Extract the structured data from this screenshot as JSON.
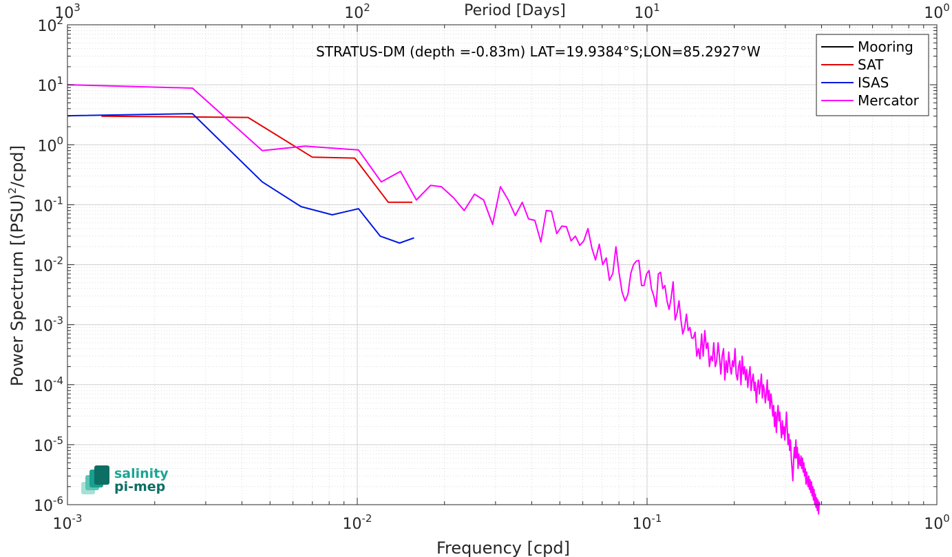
{
  "chart_data": {
    "type": "line",
    "title": "STRATUS-DM (depth =-0.83m) LAT=19.9384°S;LON=85.2927°W",
    "xlabel": "Frequency [cpd]",
    "ylabel": "Power Spectrum [(PSU)",
    "ylabel_sup": "2",
    "ylabel_tail": "/cpd]",
    "top_xlabel": "Period [Days]",
    "x_scale": "log",
    "y_scale": "log",
    "xlim": [
      0.001,
      1
    ],
    "ylim": [
      1e-06,
      100
    ],
    "grid": true,
    "minor_grid": true,
    "legend_position": "top-right",
    "x_ticks": [
      {
        "v": 0.001,
        "base": "10",
        "exp": "-3"
      },
      {
        "v": 0.01,
        "base": "10",
        "exp": "-2"
      },
      {
        "v": 0.1,
        "base": "10",
        "exp": "-1"
      },
      {
        "v": 1,
        "base": "10",
        "exp": "0"
      }
    ],
    "top_ticks": [
      {
        "v": 0.001,
        "base": "10",
        "exp": "3"
      },
      {
        "v": 0.01,
        "base": "10",
        "exp": "2"
      },
      {
        "v": 0.1,
        "base": "10",
        "exp": "1"
      },
      {
        "v": 1,
        "base": "10",
        "exp": "0"
      }
    ],
    "y_ticks": [
      {
        "v": 100,
        "base": "10",
        "exp": "2"
      },
      {
        "v": 10,
        "base": "10",
        "exp": "1"
      },
      {
        "v": 1,
        "base": "10",
        "exp": "0"
      },
      {
        "v": 0.1,
        "base": "10",
        "exp": "-1"
      },
      {
        "v": 0.01,
        "base": "10",
        "exp": "-2"
      },
      {
        "v": 0.001,
        "base": "10",
        "exp": "-3"
      },
      {
        "v": 0.0001,
        "base": "10",
        "exp": "-4"
      },
      {
        "v": 1e-05,
        "base": "10",
        "exp": "-5"
      },
      {
        "v": 1e-06,
        "base": "10",
        "exp": "-6"
      }
    ],
    "series": [
      {
        "name": "Mooring",
        "color": "#000000",
        "points": []
      },
      {
        "name": "SAT",
        "color": "#e60000",
        "points": [
          [
            0.00131,
            3.0
          ],
          [
            0.0042,
            2.85
          ],
          [
            0.007,
            0.62
          ],
          [
            0.0098,
            0.6
          ],
          [
            0.0128,
            0.11
          ],
          [
            0.0155,
            0.11
          ]
        ]
      },
      {
        "name": "ISAS",
        "color": "#0018e0",
        "points": [
          [
            0.001,
            3.05
          ],
          [
            0.0027,
            3.3
          ],
          [
            0.0047,
            0.24
          ],
          [
            0.0064,
            0.093
          ],
          [
            0.0082,
            0.068
          ],
          [
            0.0101,
            0.086
          ],
          [
            0.012,
            0.03
          ],
          [
            0.014,
            0.023
          ],
          [
            0.0157,
            0.028
          ]
        ]
      },
      {
        "name": "Mercator",
        "color": "#ff00ff",
        "points": [
          [
            0.001,
            10.0
          ],
          [
            0.0027,
            8.8
          ],
          [
            0.0047,
            0.8
          ],
          [
            0.0066,
            0.95
          ],
          [
            0.0101,
            0.82
          ],
          [
            0.0121,
            0.24
          ],
          [
            0.0141,
            0.36
          ],
          [
            0.016,
            0.12
          ],
          [
            0.0179,
            0.21
          ],
          [
            0.0195,
            0.2
          ],
          [
            0.0215,
            0.13
          ],
          [
            0.0234,
            0.08
          ],
          [
            0.0254,
            0.15
          ],
          [
            0.0273,
            0.12
          ],
          [
            0.0293,
            0.047
          ],
          [
            0.0312,
            0.2
          ],
          [
            0.0332,
            0.12
          ],
          [
            0.0351,
            0.066
          ],
          [
            0.0371,
            0.11
          ],
          [
            0.039,
            0.058
          ],
          [
            0.041,
            0.055
          ],
          [
            0.043,
            0.024
          ],
          [
            0.0449,
            0.08
          ],
          [
            0.0468,
            0.078
          ],
          [
            0.0488,
            0.033
          ],
          [
            0.0508,
            0.044
          ],
          [
            0.0527,
            0.043
          ],
          [
            0.0547,
            0.025
          ],
          [
            0.0566,
            0.03
          ],
          [
            0.0586,
            0.021
          ],
          [
            0.0605,
            0.025
          ],
          [
            0.0625,
            0.04
          ],
          [
            0.0645,
            0.019
          ],
          [
            0.0664,
            0.012
          ],
          [
            0.0684,
            0.022
          ],
          [
            0.0703,
            0.01
          ],
          [
            0.0723,
            0.013
          ],
          [
            0.0742,
            0.0055
          ],
          [
            0.0762,
            0.0072
          ],
          [
            0.0781,
            0.02
          ],
          [
            0.08,
            0.0075
          ],
          [
            0.082,
            0.0035
          ],
          [
            0.084,
            0.0025
          ],
          [
            0.0859,
            0.0032
          ],
          [
            0.0879,
            0.0072
          ],
          [
            0.0898,
            0.01
          ],
          [
            0.0918,
            0.0115
          ],
          [
            0.0937,
            0.0118
          ],
          [
            0.0957,
            0.0045
          ],
          [
            0.0976,
            0.0045
          ],
          [
            0.0996,
            0.007
          ],
          [
            0.1016,
            0.008
          ],
          [
            0.1035,
            0.004
          ],
          [
            0.1055,
            0.003
          ],
          [
            0.1074,
            0.002
          ],
          [
            0.1094,
            0.007
          ],
          [
            0.1113,
            0.0075
          ],
          [
            0.1133,
            0.004
          ],
          [
            0.1152,
            0.0045
          ],
          [
            0.1172,
            0.0025
          ],
          [
            0.1191,
            0.0018
          ],
          [
            0.1211,
            0.0028
          ],
          [
            0.123,
            0.0052
          ],
          [
            0.125,
            0.0012
          ],
          [
            0.127,
            0.0016
          ],
          [
            0.1289,
            0.0025
          ],
          [
            0.1309,
            0.0012
          ],
          [
            0.1328,
            0.0007
          ],
          [
            0.1348,
            0.0009
          ],
          [
            0.1367,
            0.0015
          ],
          [
            0.1387,
            0.0008
          ],
          [
            0.1406,
            0.0009
          ],
          [
            0.1426,
            0.0006
          ],
          [
            0.1445,
            0.0006
          ],
          [
            0.1465,
            0.00075
          ],
          [
            0.1484,
            0.0003
          ],
          [
            0.1504,
            0.0004
          ],
          [
            0.1523,
            0.00027
          ],
          [
            0.1543,
            0.0007
          ],
          [
            0.1562,
            0.0003
          ],
          [
            0.1582,
            0.0008
          ],
          [
            0.1602,
            0.0004
          ],
          [
            0.1621,
            0.0005
          ],
          [
            0.1641,
            0.0002
          ],
          [
            0.166,
            0.0003
          ],
          [
            0.168,
            0.00025
          ],
          [
            0.1699,
            0.0005
          ],
          [
            0.1719,
            0.0002
          ],
          [
            0.1738,
            0.00025
          ],
          [
            0.1758,
            0.0005
          ],
          [
            0.1777,
            0.0003
          ],
          [
            0.1797,
            0.00015
          ],
          [
            0.1816,
            0.0003
          ],
          [
            0.1836,
            0.0004
          ],
          [
            0.1855,
            0.00012
          ],
          [
            0.1875,
            0.00025
          ],
          [
            0.1894,
            0.00016
          ],
          [
            0.1914,
            0.00035
          ],
          [
            0.1934,
            0.0002
          ],
          [
            0.1953,
            0.00015
          ],
          [
            0.1973,
            0.00025
          ],
          [
            0.1992,
            0.0002
          ],
          [
            0.2012,
            0.0004
          ],
          [
            0.2031,
            0.00015
          ],
          [
            0.2051,
            0.00012
          ],
          [
            0.207,
            0.0002
          ],
          [
            0.209,
            0.00025
          ],
          [
            0.2109,
            0.0001
          ],
          [
            0.2129,
            0.0003
          ],
          [
            0.2148,
            0.00015
          ],
          [
            0.2168,
            0.0002
          ],
          [
            0.2187,
            0.00012
          ],
          [
            0.2207,
            0.00018
          ],
          [
            0.2227,
            9e-05
          ],
          [
            0.2246,
            0.00014
          ],
          [
            0.2266,
            0.0002
          ],
          [
            0.2285,
            8e-05
          ],
          [
            0.2305,
            0.00012
          ],
          [
            0.2324,
            0.00015
          ],
          [
            0.2344,
            8e-05
          ],
          [
            0.2363,
            0.00011
          ],
          [
            0.2383,
            5e-05
          ],
          [
            0.2402,
            9e-05
          ],
          [
            0.2422,
            0.00012
          ],
          [
            0.2441,
            7e-05
          ],
          [
            0.2461,
            0.0001
          ],
          [
            0.248,
            0.00015
          ],
          [
            0.25,
            6e-05
          ],
          [
            0.252,
            0.0001
          ],
          [
            0.2539,
            8e-05
          ],
          [
            0.2559,
            5e-05
          ],
          [
            0.2578,
            7e-05
          ],
          [
            0.2598,
            0.00012
          ],
          [
            0.2617,
            5.5e-05
          ],
          [
            0.2637,
            8e-05
          ],
          [
            0.2656,
            4e-05
          ],
          [
            0.2676,
            7e-05
          ],
          [
            0.2695,
            5e-05
          ],
          [
            0.2715,
            3e-05
          ],
          [
            0.2734,
            4.5e-05
          ],
          [
            0.2754,
            2e-05
          ],
          [
            0.2773,
            3.5e-05
          ],
          [
            0.2793,
            1.6e-05
          ],
          [
            0.2812,
            3e-05
          ],
          [
            0.2832,
            4.5e-05
          ],
          [
            0.2852,
            2.5e-05
          ],
          [
            0.2871,
            3.5e-05
          ],
          [
            0.2891,
            2e-05
          ],
          [
            0.291,
            1.3e-05
          ],
          [
            0.293,
            2.5e-05
          ],
          [
            0.2949,
            1.5e-05
          ],
          [
            0.2969,
            2e-05
          ],
          [
            0.2988,
            1.2e-05
          ],
          [
            0.3008,
            2e-05
          ],
          [
            0.3027,
            3.5e-05
          ],
          [
            0.3047,
            1.8e-05
          ],
          [
            0.3066,
            1e-05
          ],
          [
            0.3086,
            1.5e-05
          ],
          [
            0.3105,
            8e-06
          ],
          [
            0.3125,
            1.2e-05
          ],
          [
            0.3145,
            6e-06
          ],
          [
            0.3164,
            4e-06
          ],
          [
            0.3184,
            2.5e-06
          ],
          [
            0.3203,
            5e-06
          ],
          [
            0.3223,
            9e-06
          ],
          [
            0.3242,
            6e-06
          ],
          [
            0.3262,
            1.2e-05
          ],
          [
            0.3281,
            6e-06
          ],
          [
            0.3301,
            9e-06
          ],
          [
            0.332,
            4e-06
          ],
          [
            0.334,
            7e-06
          ],
          [
            0.3359,
            5e-06
          ],
          [
            0.3379,
            4.5e-06
          ],
          [
            0.3398,
            6.5e-06
          ],
          [
            0.3418,
            4e-06
          ],
          [
            0.3437,
            6e-06
          ],
          [
            0.3457,
            3.5e-06
          ],
          [
            0.3477,
            5e-06
          ],
          [
            0.3496,
            3e-06
          ],
          [
            0.3516,
            4e-06
          ],
          [
            0.3535,
            2.2e-06
          ],
          [
            0.3555,
            3.5e-06
          ],
          [
            0.3574,
            2.5e-06
          ],
          [
            0.3594,
            2e-06
          ],
          [
            0.3613,
            3e-06
          ],
          [
            0.3633,
            1.8e-06
          ],
          [
            0.3652,
            2.6e-06
          ],
          [
            0.3672,
            1.6e-06
          ],
          [
            0.3691,
            2.4e-06
          ],
          [
            0.3711,
            1.4e-06
          ],
          [
            0.373,
            2e-06
          ],
          [
            0.375,
            1.2e-06
          ],
          [
            0.377,
            1.8e-06
          ],
          [
            0.3789,
            1e-06
          ],
          [
            0.3809,
            1.5e-06
          ],
          [
            0.3828,
            9e-07
          ],
          [
            0.3848,
            1.3e-06
          ],
          [
            0.3867,
            8e-07
          ],
          [
            0.3887,
            1.2e-06
          ],
          [
            0.3906,
            7e-07
          ],
          [
            0.3926,
            1.1e-06
          ],
          [
            0.3945,
            1e-06
          ]
        ]
      }
    ],
    "legend": [
      "Mooring",
      "SAT",
      "ISAS",
      "Mercator"
    ]
  },
  "logo": {
    "line1": "salinity",
    "line2": "pi-mep",
    "colors": [
      "#0d6e64",
      "#1a9e8e",
      "#5cc5b5",
      "#a6e0d6"
    ]
  }
}
